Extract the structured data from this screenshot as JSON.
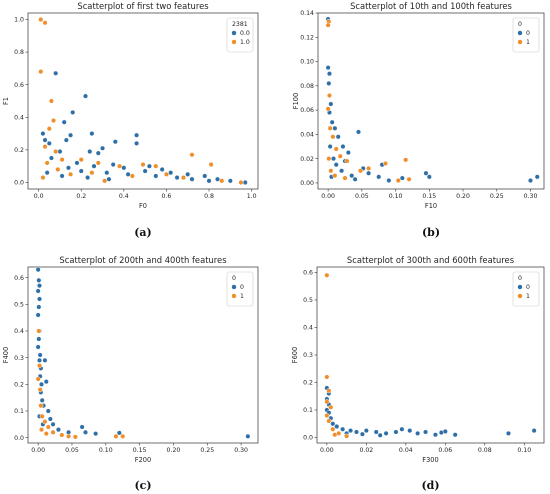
{
  "colors": {
    "class_0": "#2f6fa8",
    "class_1": "#f08e2a",
    "axes": "#333333",
    "edge": "#ffffff"
  },
  "chart_data": [
    {
      "type": "scatter",
      "caption": "(a)",
      "title": "Scatterplot of first two features",
      "xlabel": "F0",
      "ylabel": "F1",
      "xlim": [
        -0.05,
        1.03
      ],
      "ylim": [
        -0.04,
        1.04
      ],
      "xticks": [
        0.0,
        0.2,
        0.4,
        0.6,
        0.8,
        1.0
      ],
      "xtick_labels": [
        "0.0",
        "0.2",
        "0.4",
        "0.6",
        "0.8",
        "1.0"
      ],
      "yticks": [
        0.0,
        0.2,
        0.4,
        0.6,
        0.8,
        1.0
      ],
      "ytick_labels": [
        "0.0",
        "0.2",
        "0.4",
        "0.6",
        "0.8",
        "1.0"
      ],
      "legend": {
        "title": "2381",
        "placement": "top-right"
      },
      "series": [
        {
          "name": "0.0",
          "color": "#2f6fa8",
          "points": [
            [
              0.02,
              0.3
            ],
            [
              0.03,
              0.26
            ],
            [
              0.05,
              0.24
            ],
            [
              0.08,
              0.67
            ],
            [
              0.12,
              0.37
            ],
            [
              0.13,
              0.26
            ],
            [
              0.15,
              0.29
            ],
            [
              0.16,
              0.43
            ],
            [
              0.22,
              0.53
            ],
            [
              0.24,
              0.19
            ],
            [
              0.25,
              0.3
            ],
            [
              0.28,
              0.18
            ],
            [
              0.3,
              0.21
            ],
            [
              0.36,
              0.25
            ],
            [
              0.46,
              0.29
            ],
            [
              0.46,
              0.24
            ],
            [
              0.4,
              0.09
            ],
            [
              0.52,
              0.1
            ],
            [
              0.5,
              0.07
            ],
            [
              0.58,
              0.08
            ],
            [
              0.62,
              0.06
            ],
            [
              0.7,
              0.05
            ],
            [
              0.78,
              0.04
            ],
            [
              0.84,
              0.02
            ],
            [
              0.9,
              0.01
            ],
            [
              0.97,
              0.0
            ],
            [
              0.06,
              0.15
            ],
            [
              0.1,
              0.19
            ],
            [
              0.14,
              0.09
            ],
            [
              0.18,
              0.12
            ],
            [
              0.2,
              0.07
            ],
            [
              0.26,
              0.1
            ],
            [
              0.32,
              0.06
            ],
            [
              0.35,
              0.11
            ],
            [
              0.42,
              0.05
            ],
            [
              0.55,
              0.04
            ],
            [
              0.65,
              0.03
            ],
            [
              0.72,
              0.02
            ],
            [
              0.8,
              0.01
            ],
            [
              0.33,
              0.02
            ],
            [
              0.11,
              0.04
            ],
            [
              0.04,
              0.06
            ],
            [
              0.23,
              0.03
            ]
          ]
        },
        {
          "name": "1.0",
          "color": "#f08e2a",
          "points": [
            [
              0.01,
              1.0
            ],
            [
              0.03,
              0.98
            ],
            [
              0.01,
              0.68
            ],
            [
              0.06,
              0.5
            ],
            [
              0.07,
              0.38
            ],
            [
              0.05,
              0.33
            ],
            [
              0.03,
              0.22
            ],
            [
              0.08,
              0.19
            ],
            [
              0.11,
              0.14
            ],
            [
              0.2,
              0.14
            ],
            [
              0.28,
              0.12
            ],
            [
              0.38,
              0.1
            ],
            [
              0.49,
              0.11
            ],
            [
              0.55,
              0.1
            ],
            [
              0.72,
              0.17
            ],
            [
              0.81,
              0.11
            ],
            [
              0.6,
              0.05
            ],
            [
              0.68,
              0.03
            ],
            [
              0.86,
              0.01
            ],
            [
              0.95,
              0.0
            ],
            [
              0.04,
              0.12
            ],
            [
              0.09,
              0.08
            ],
            [
              0.15,
              0.05
            ],
            [
              0.25,
              0.06
            ],
            [
              0.44,
              0.04
            ],
            [
              0.02,
              0.03
            ],
            [
              0.31,
              0.01
            ]
          ]
        }
      ]
    },
    {
      "type": "scatter",
      "caption": "(b)",
      "title": "Scatterplot of 10th and 100th features",
      "xlabel": "F10",
      "ylabel": "F100",
      "xlim": [
        -0.015,
        0.32
      ],
      "ylim": [
        -0.005,
        0.14
      ],
      "xticks": [
        0.0,
        0.05,
        0.1,
        0.15,
        0.2,
        0.25,
        0.3
      ],
      "xtick_labels": [
        "0.00",
        "0.05",
        "0.10",
        "0.15",
        "0.20",
        "0.25",
        "0.30"
      ],
      "yticks": [
        0.0,
        0.02,
        0.04,
        0.06,
        0.08,
        0.1,
        0.12,
        0.14
      ],
      "ytick_labels": [
        "0.00",
        "0.02",
        "0.04",
        "0.06",
        "0.08",
        "0.10",
        "0.12",
        "0.14"
      ],
      "legend": {
        "title": "0",
        "placement": "top-right"
      },
      "series": [
        {
          "name": "0",
          "color": "#2f6fa8",
          "points": [
            [
              0.0,
              0.135
            ],
            [
              0.0,
              0.095
            ],
            [
              0.002,
              0.09
            ],
            [
              0.001,
              0.082
            ],
            [
              0.004,
              0.065
            ],
            [
              0.002,
              0.058
            ],
            [
              0.006,
              0.05
            ],
            [
              0.01,
              0.045
            ],
            [
              0.015,
              0.038
            ],
            [
              0.022,
              0.03
            ],
            [
              0.03,
              0.025
            ],
            [
              0.045,
              0.042
            ],
            [
              0.052,
              0.012
            ],
            [
              0.06,
              0.008
            ],
            [
              0.075,
              0.005
            ],
            [
              0.08,
              0.015
            ],
            [
              0.11,
              0.004
            ],
            [
              0.145,
              0.008
            ],
            [
              0.15,
              0.005
            ],
            [
              0.3,
              0.002
            ],
            [
              0.31,
              0.005
            ],
            [
              0.008,
              0.02
            ],
            [
              0.012,
              0.015
            ],
            [
              0.02,
              0.01
            ],
            [
              0.035,
              0.006
            ],
            [
              0.003,
              0.03
            ],
            [
              0.025,
              0.018
            ],
            [
              0.04,
              0.003
            ],
            [
              0.09,
              0.002
            ],
            [
              0.005,
              0.005
            ]
          ]
        },
        {
          "name": "1",
          "color": "#f08e2a",
          "points": [
            [
              0.001,
              0.133
            ],
            [
              0.0,
              0.13
            ],
            [
              0.002,
              0.072
            ],
            [
              0.0,
              0.061
            ],
            [
              0.003,
              0.045
            ],
            [
              0.007,
              0.038
            ],
            [
              0.012,
              0.028
            ],
            [
              0.018,
              0.022
            ],
            [
              0.028,
              0.018
            ],
            [
              0.048,
              0.01
            ],
            [
              0.06,
              0.012
            ],
            [
              0.085,
              0.016
            ],
            [
              0.115,
              0.019
            ],
            [
              0.12,
              0.003
            ],
            [
              0.104,
              0.002
            ],
            [
              0.004,
              0.01
            ],
            [
              0.01,
              0.006
            ],
            [
              0.025,
              0.004
            ],
            [
              0.001,
              0.02
            ]
          ]
        }
      ]
    },
    {
      "type": "scatter",
      "caption": "(c)",
      "title": "Scatterplot of 200th and 400th features",
      "xlabel": "F200",
      "ylabel": "F400",
      "xlim": [
        -0.015,
        0.325
      ],
      "ylim": [
        -0.02,
        0.64
      ],
      "xticks": [
        0.0,
        0.05,
        0.1,
        0.15,
        0.2,
        0.25,
        0.3
      ],
      "xtick_labels": [
        "0.00",
        "0.05",
        "0.10",
        "0.15",
        "0.20",
        "0.25",
        "0.30"
      ],
      "yticks": [
        0.0,
        0.1,
        0.2,
        0.3,
        0.4,
        0.5,
        0.6
      ],
      "ytick_labels": [
        "0.0",
        "0.1",
        "0.2",
        "0.3",
        "0.4",
        "0.5",
        "0.6"
      ],
      "legend": {
        "title": "0",
        "placement": "top-right"
      },
      "series": [
        {
          "name": "0",
          "color": "#2f6fa8",
          "points": [
            [
              0.0,
              0.63
            ],
            [
              0.001,
              0.59
            ],
            [
              0.002,
              0.57
            ],
            [
              0.0,
              0.55
            ],
            [
              0.002,
              0.52
            ],
            [
              0.001,
              0.49
            ],
            [
              0.0,
              0.46
            ],
            [
              0.002,
              0.4
            ],
            [
              0.001,
              0.37
            ],
            [
              0.0,
              0.34
            ],
            [
              0.003,
              0.31
            ],
            [
              0.002,
              0.29
            ],
            [
              0.004,
              0.26
            ],
            [
              0.003,
              0.23
            ],
            [
              0.005,
              0.2
            ],
            [
              0.004,
              0.17
            ],
            [
              0.006,
              0.14
            ],
            [
              0.008,
              0.12
            ],
            [
              0.01,
              0.29
            ],
            [
              0.012,
              0.21
            ],
            [
              0.015,
              0.1
            ],
            [
              0.018,
              0.07
            ],
            [
              0.022,
              0.05
            ],
            [
              0.03,
              0.03
            ],
            [
              0.045,
              0.02
            ],
            [
              0.065,
              0.04
            ],
            [
              0.07,
              0.02
            ],
            [
              0.085,
              0.015
            ],
            [
              0.12,
              0.018
            ],
            [
              0.31,
              0.005
            ],
            [
              0.002,
              0.08
            ],
            [
              0.007,
              0.05
            ]
          ]
        },
        {
          "name": "1",
          "color": "#f08e2a",
          "points": [
            [
              0.001,
              0.4
            ],
            [
              0.002,
              0.27
            ],
            [
              0.0,
              0.22
            ],
            [
              0.003,
              0.18
            ],
            [
              0.004,
              0.12
            ],
            [
              0.006,
              0.08
            ],
            [
              0.01,
              0.06
            ],
            [
              0.015,
              0.04
            ],
            [
              0.022,
              0.02
            ],
            [
              0.035,
              0.01
            ],
            [
              0.045,
              0.005
            ],
            [
              0.055,
              0.003
            ],
            [
              0.115,
              0.005
            ],
            [
              0.125,
              0.005
            ],
            [
              0.012,
              0.015
            ],
            [
              0.005,
              0.03
            ]
          ]
        }
      ]
    },
    {
      "type": "scatter",
      "caption": "(d)",
      "title": "Scatterplot of 300th and 600th features",
      "xlabel": "F300",
      "ylabel": "F600",
      "xlim": [
        -0.005,
        0.11
      ],
      "ylim": [
        -0.02,
        0.62
      ],
      "xticks": [
        0.0,
        0.02,
        0.04,
        0.06,
        0.08,
        0.1
      ],
      "xtick_labels": [
        "0.00",
        "0.02",
        "0.04",
        "0.06",
        "0.08",
        "0.10"
      ],
      "yticks": [
        0.0,
        0.1,
        0.2,
        0.3,
        0.4,
        0.5,
        0.6
      ],
      "ytick_labels": [
        "0.0",
        "0.1",
        "0.2",
        "0.3",
        "0.4",
        "0.5",
        "0.6"
      ],
      "legend": {
        "title": "0",
        "placement": "top-right"
      },
      "series": [
        {
          "name": "0",
          "color": "#2f6fa8",
          "points": [
            [
              0.0,
              0.18
            ],
            [
              0.001,
              0.16
            ],
            [
              0.0,
              0.14
            ],
            [
              0.001,
              0.12
            ],
            [
              0.0,
              0.1
            ],
            [
              0.001,
              0.09
            ],
            [
              0.002,
              0.07
            ],
            [
              0.003,
              0.05
            ],
            [
              0.005,
              0.04
            ],
            [
              0.008,
              0.03
            ],
            [
              0.012,
              0.025
            ],
            [
              0.015,
              0.02
            ],
            [
              0.02,
              0.025
            ],
            [
              0.025,
              0.02
            ],
            [
              0.03,
              0.015
            ],
            [
              0.035,
              0.02
            ],
            [
              0.038,
              0.03
            ],
            [
              0.042,
              0.025
            ],
            [
              0.046,
              0.015
            ],
            [
              0.05,
              0.02
            ],
            [
              0.055,
              0.01
            ],
            [
              0.058,
              0.018
            ],
            [
              0.06,
              0.022
            ],
            [
              0.065,
              0.01
            ],
            [
              0.092,
              0.015
            ],
            [
              0.105,
              0.025
            ],
            [
              0.018,
              0.012
            ],
            [
              0.027,
              0.008
            ],
            [
              0.01,
              0.015
            ]
          ]
        },
        {
          "name": "1",
          "color": "#f08e2a",
          "points": [
            [
              0.0,
              0.59
            ],
            [
              0.0,
              0.22
            ],
            [
              0.001,
              0.17
            ],
            [
              0.0,
              0.13
            ],
            [
              0.002,
              0.11
            ],
            [
              0.0,
              0.08
            ],
            [
              0.001,
              0.06
            ],
            [
              0.003,
              0.03
            ],
            [
              0.006,
              0.015
            ],
            [
              0.01,
              0.005
            ],
            [
              0.004,
              0.01
            ]
          ]
        }
      ]
    }
  ]
}
